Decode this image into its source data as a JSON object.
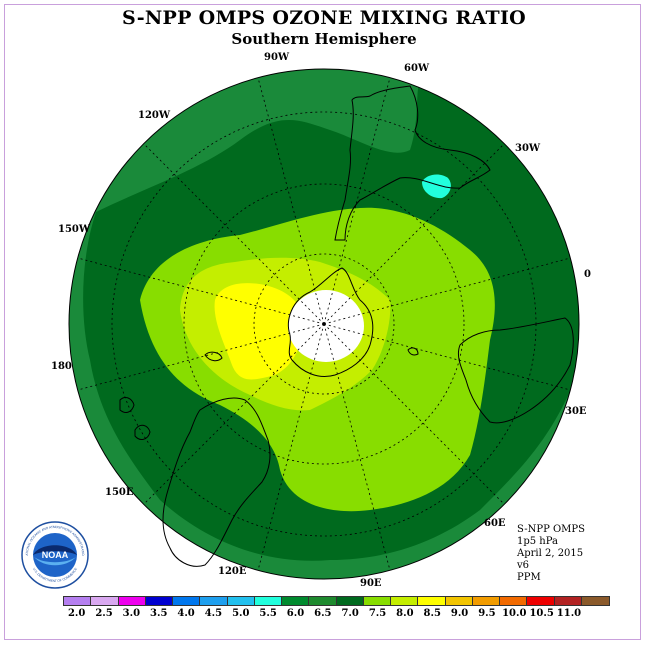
{
  "header": {
    "title": "S-NPP OMPS OZONE MIXING RATIO",
    "subtitle": "Southern Hemisphere"
  },
  "longitude_labels": {
    "lon_90w": "90W",
    "lon_60w": "60W",
    "lon_30w": "30W",
    "lon_0": "0",
    "lon_30e": "30E",
    "lon_60e": "60E",
    "lon_90e": "90E",
    "lon_120e": "120E",
    "lon_150e": "150E",
    "lon_180": "180",
    "lon_150w": "150W",
    "lon_120w": "120W"
  },
  "info": {
    "instrument": "S-NPP OMPS",
    "level": "1p5 hPa",
    "date": "April 2, 2015",
    "version": "v6",
    "units": "PPM"
  },
  "logo": {
    "text": "NOAA",
    "ring_text": "NATIONAL OCEANIC AND ATMOSPHERIC ADMINISTRATION",
    "ring_text_bottom": "U.S. DEPARTMENT OF COMMERCE"
  },
  "colorbar": {
    "colors": [
      "#b57ff0",
      "#d9a8f0",
      "#ee00ee",
      "#0000d0",
      "#0077ee",
      "#1e9fee",
      "#22c0ee",
      "#22ffdd",
      "#008a2e",
      "#1e8a2e",
      "#006a1e",
      "#88dd00",
      "#c4ee00",
      "#ffff00",
      "#f2c400",
      "#f29c00",
      "#f26a00",
      "#ee0000",
      "#b22222",
      "#8b5a2b"
    ],
    "ticks": [
      "2.0",
      "2.5",
      "3.0",
      "3.5",
      "4.0",
      "4.5",
      "5.0",
      "5.5",
      "6.0",
      "6.5",
      "7.0",
      "7.5",
      "8.0",
      "8.5",
      "9.0",
      "9.5",
      "10.0",
      "10.5",
      "11.0"
    ]
  },
  "map_colors": {
    "outer": "#1a8a3a",
    "mid": "#006a1e",
    "band75": "#88dd00",
    "band8": "#c4ee00",
    "band85": "#ffff00",
    "cyan": "#22ffdd",
    "pole": "#ffffff"
  }
}
